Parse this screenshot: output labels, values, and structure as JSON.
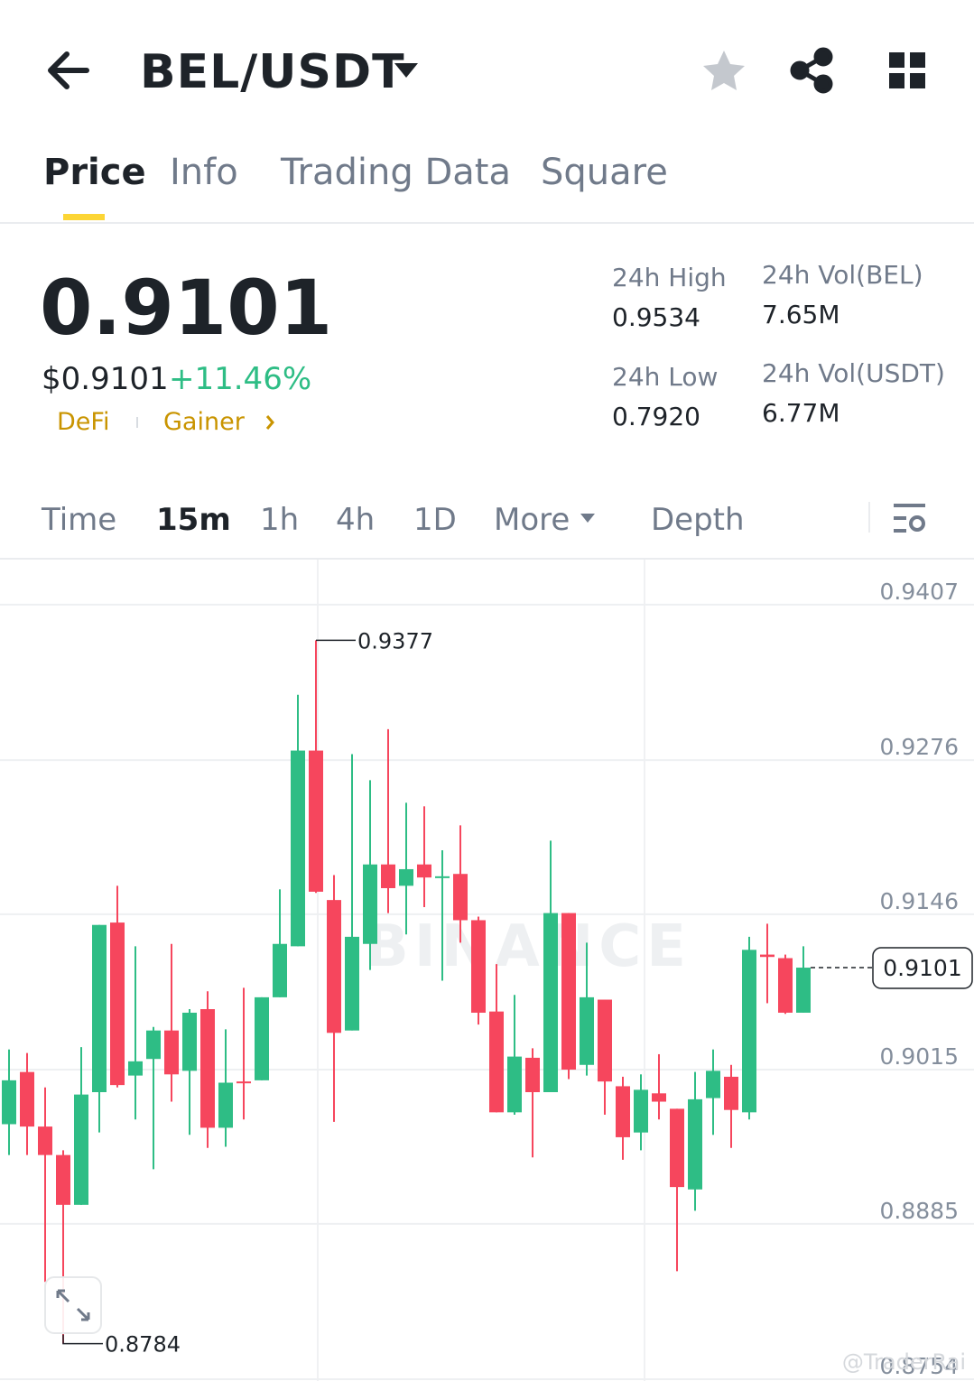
{
  "header": {
    "pair": "BEL/USDT"
  },
  "tabs": [
    "Price",
    "Info",
    "Trading Data",
    "Square"
  ],
  "price": {
    "last": "0.9101",
    "usd": "$0.9101",
    "change": "+11.46%",
    "tags": [
      "DeFi",
      "Gainer"
    ]
  },
  "stats": [
    {
      "label": "24h High",
      "value": "0.9534"
    },
    {
      "label": "24h Vol(BEL)",
      "value": "7.65M"
    },
    {
      "label": "24h Low",
      "value": "0.7920"
    },
    {
      "label": "24h Vol(USDT)",
      "value": "6.77M"
    }
  ],
  "intervals": [
    "Time",
    "15m",
    "1h",
    "4h",
    "1D",
    "More",
    "Depth"
  ],
  "chart_data": {
    "type": "candlestick",
    "watermark": "BINANCE",
    "up_color": "#2ebd85",
    "down_color": "#f6465d",
    "grid": true,
    "ylim": [
      0.8754,
      0.9445
    ],
    "yticks": [
      0.9407,
      0.9276,
      0.9146,
      0.9015,
      0.8885,
      0.8754
    ],
    "open": [
      0.8969,
      0.9013,
      0.8967,
      0.8943,
      0.8901,
      0.8996,
      0.9139,
      0.901,
      0.9024,
      0.9048,
      0.9014,
      0.9066,
      0.8966,
      0.9005,
      0.9006,
      0.9076,
      0.9119,
      0.9284,
      0.9158,
      0.9048,
      0.9121,
      0.9188,
      0.917,
      0.9188,
      0.9177,
      0.918,
      0.9141,
      0.9064,
      0.8979,
      0.9025,
      0.8996,
      0.9147,
      0.9019,
      0.9074,
      0.9001,
      0.8962,
      0.8995,
      0.8982,
      0.8914,
      0.8991,
      0.9009,
      0.8979,
      0.9112,
      0.9109,
      0.9063
    ],
    "high": [
      0.9032,
      0.9029,
      0.9,
      0.8947,
      0.9034,
      0.9137,
      0.917,
      0.9119,
      0.9051,
      0.9121,
      0.9066,
      0.9081,
      0.9049,
      0.9084,
      0.9076,
      0.9167,
      0.9331,
      0.9377,
      0.9179,
      0.9281,
      0.9259,
      0.9302,
      0.924,
      0.9237,
      0.92,
      0.9221,
      0.9144,
      0.9104,
      0.9078,
      0.9033,
      0.9208,
      0.9147,
      0.9122,
      0.9074,
      0.9009,
      0.9011,
      0.9028,
      0.8982,
      0.9013,
      0.9032,
      0.9019,
      0.9127,
      0.9138,
      0.9112,
      0.9119
    ],
    "low": [
      0.8943,
      0.8943,
      0.8836,
      0.8784,
      0.8901,
      0.8962,
      0.9,
      0.8973,
      0.8931,
      0.8988,
      0.896,
      0.8949,
      0.895,
      0.8973,
      0.9006,
      0.9076,
      0.9119,
      0.9164,
      0.8971,
      0.9048,
      0.9099,
      0.9147,
      0.9129,
      0.9152,
      0.909,
      0.9122,
      0.9053,
      0.8979,
      0.8977,
      0.8941,
      0.8996,
      0.9007,
      0.901,
      0.8977,
      0.8939,
      0.8947,
      0.8973,
      0.8845,
      0.8896,
      0.896,
      0.8949,
      0.8973,
      0.9071,
      0.9062,
      0.9063
    ],
    "close": [
      0.9006,
      0.8967,
      0.8943,
      0.8901,
      0.8994,
      0.9137,
      0.9002,
      0.9022,
      0.9048,
      0.9011,
      0.9063,
      0.8966,
      0.9004,
      0.9004,
      0.9076,
      0.9121,
      0.9284,
      0.9165,
      0.9046,
      0.9127,
      0.9188,
      0.9168,
      0.9184,
      0.9177,
      0.9178,
      0.9141,
      0.9063,
      0.8979,
      0.9026,
      0.8996,
      0.9147,
      0.9015,
      0.9076,
      0.9005,
      0.8958,
      0.8998,
      0.8988,
      0.8916,
      0.899,
      0.9014,
      0.8981,
      0.9116,
      0.911,
      0.9063,
      0.9101
    ],
    "markers": {
      "high": 0.9377,
      "low": 0.8784,
      "last": 0.9101
    }
  },
  "credit": "@TraderRai"
}
